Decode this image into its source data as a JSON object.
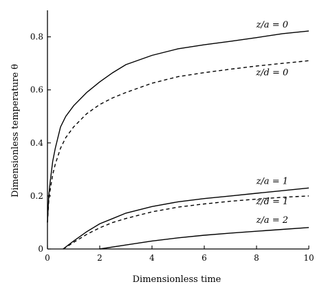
{
  "chart_data": {
    "type": "line",
    "title": "",
    "xlabel": "Dimensionless time",
    "ylabel": "Dimensionless temperature θ",
    "xlim": [
      0,
      10
    ],
    "ylim": [
      0,
      0.9
    ],
    "x_ticks": [
      {
        "value": 0,
        "label": "0"
      },
      {
        "value": 2,
        "label": "2"
      },
      {
        "value": 4,
        "label": "4"
      },
      {
        "value": 6,
        "label": "6"
      },
      {
        "value": 8,
        "label": "8"
      },
      {
        "value": 10,
        "label": "10"
      }
    ],
    "y_ticks": [
      {
        "value": 0,
        "label": "0"
      },
      {
        "value": 0.2,
        "label": "0.2"
      },
      {
        "value": 0.4,
        "label": "0.4"
      },
      {
        "value": 0.6,
        "label": "0.6"
      },
      {
        "value": 0.8,
        "label": "0.8"
      }
    ],
    "grid": false,
    "legend": "none",
    "series": [
      {
        "name": "z/a = 0",
        "style": "solid",
        "label_at": [
          8.6,
          0.835
        ],
        "x": [
          0,
          0.05,
          0.1,
          0.2,
          0.3,
          0.5,
          0.7,
          1.0,
          1.5,
          2.0,
          2.5,
          3.0,
          4.0,
          5.0,
          6.0,
          7.0,
          8.0,
          9.0,
          10.0
        ],
        "y": [
          0.1,
          0.2,
          0.25,
          0.33,
          0.38,
          0.46,
          0.5,
          0.54,
          0.59,
          0.63,
          0.665,
          0.695,
          0.73,
          0.755,
          0.77,
          0.783,
          0.797,
          0.812,
          0.822
        ]
      },
      {
        "name": "z/d = 0",
        "style": "dashed",
        "label_at": [
          8.6,
          0.655
        ],
        "x": [
          0,
          0.05,
          0.1,
          0.2,
          0.3,
          0.5,
          0.7,
          1.0,
          1.5,
          2.0,
          2.5,
          3.0,
          4.0,
          5.0,
          6.0,
          7.0,
          8.0,
          9.0,
          10.0
        ],
        "y": [
          0.1,
          0.18,
          0.22,
          0.28,
          0.32,
          0.38,
          0.42,
          0.46,
          0.51,
          0.545,
          0.57,
          0.59,
          0.625,
          0.65,
          0.665,
          0.678,
          0.69,
          0.7,
          0.71
        ]
      },
      {
        "name": "z/a = 1",
        "style": "solid",
        "label_at": [
          8.6,
          0.245
        ],
        "x": [
          0.6,
          0.8,
          1.0,
          1.5,
          2.0,
          2.5,
          3.0,
          4.0,
          5.0,
          6.0,
          7.0,
          8.0,
          9.0,
          10.0
        ],
        "y": [
          0,
          0.015,
          0.03,
          0.065,
          0.095,
          0.115,
          0.135,
          0.16,
          0.178,
          0.19,
          0.2,
          0.21,
          0.22,
          0.23
        ]
      },
      {
        "name": "z/d = 1",
        "style": "dashed",
        "label_at": [
          8.6,
          0.168
        ],
        "x": [
          0.6,
          0.8,
          1.0,
          1.5,
          2.0,
          2.5,
          3.0,
          4.0,
          5.0,
          6.0,
          7.0,
          8.0,
          9.0,
          10.0
        ],
        "y": [
          0,
          0.012,
          0.025,
          0.055,
          0.08,
          0.1,
          0.115,
          0.14,
          0.158,
          0.17,
          0.18,
          0.188,
          0.195,
          0.2
        ]
      },
      {
        "name": "z/a = 2",
        "style": "solid",
        "label_at": [
          8.6,
          0.098
        ],
        "x": [
          2.0,
          3.0,
          4.0,
          5.0,
          6.0,
          7.0,
          8.0,
          9.0,
          10.0
        ],
        "y": [
          0,
          0.015,
          0.03,
          0.042,
          0.052,
          0.06,
          0.067,
          0.074,
          0.081
        ]
      }
    ]
  }
}
